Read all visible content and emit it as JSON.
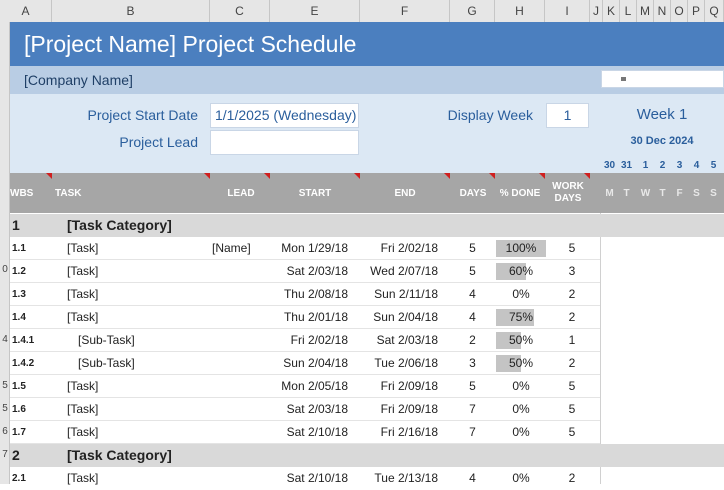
{
  "columns": [
    "A",
    "B",
    "C",
    "E",
    "F",
    "G",
    "H",
    "I",
    "J",
    "K",
    "L",
    "M",
    "N",
    "O",
    "P",
    "Q"
  ],
  "row_numbers": [
    "0",
    "5",
    "4",
    "5",
    "6",
    "7"
  ],
  "title": "[Project Name] Project Schedule",
  "company": "[Company Name]",
  "project_start_label": "Project Start Date",
  "project_start_value": "1/1/2025 (Wednesday)",
  "project_lead_label": "Project Lead",
  "project_lead_value": "",
  "display_week_label": "Display Week",
  "display_week_value": "1",
  "week_label": "Week 1",
  "week_date": "30 Dec 2024",
  "days": [
    "30",
    "31",
    "1",
    "2",
    "3",
    "4",
    "5"
  ],
  "days_of_week": [
    "M",
    "T",
    "W",
    "T",
    "F",
    "S",
    "S"
  ],
  "headers": {
    "wbs": "WBS",
    "task": "TASK",
    "lead": "LEAD",
    "start": "START",
    "end": "END",
    "days": "DAYS",
    "done": "% DONE",
    "work_days_1": "WORK",
    "work_days_2": "DAYS"
  },
  "rows": [
    {
      "type": "category",
      "wbs": "1",
      "task": "[Task Category]"
    },
    {
      "type": "task",
      "wbs": "1.1",
      "task": "[Task]",
      "lead": "[Name]",
      "start": "Mon 1/29/18",
      "end": "Fri 2/02/18",
      "days": "5",
      "done": "100%",
      "done_pct": 100,
      "work_days": "5"
    },
    {
      "type": "task",
      "wbs": "1.2",
      "task": "[Task]",
      "lead": "",
      "start": "Sat 2/03/18",
      "end": "Wed 2/07/18",
      "days": "5",
      "done": "60%",
      "done_pct": 60,
      "work_days": "3"
    },
    {
      "type": "task",
      "wbs": "1.3",
      "task": "[Task]",
      "lead": "",
      "start": "Thu 2/08/18",
      "end": "Sun 2/11/18",
      "days": "4",
      "done": "0%",
      "done_pct": 0,
      "work_days": "2"
    },
    {
      "type": "task",
      "wbs": "1.4",
      "task": "[Task]",
      "lead": "",
      "start": "Thu 2/01/18",
      "end": "Sun 2/04/18",
      "days": "4",
      "done": "75%",
      "done_pct": 75,
      "work_days": "2"
    },
    {
      "type": "subtask",
      "wbs": "1.4.1",
      "task": "[Sub-Task]",
      "lead": "",
      "start": "Fri 2/02/18",
      "end": "Sat 2/03/18",
      "days": "2",
      "done": "50%",
      "done_pct": 50,
      "work_days": "1"
    },
    {
      "type": "subtask",
      "wbs": "1.4.2",
      "task": "[Sub-Task]",
      "lead": "",
      "start": "Sun 2/04/18",
      "end": "Tue 2/06/18",
      "days": "3",
      "done": "50%",
      "done_pct": 50,
      "work_days": "2"
    },
    {
      "type": "task",
      "wbs": "1.5",
      "task": "[Task]",
      "lead": "",
      "start": "Mon 2/05/18",
      "end": "Fri 2/09/18",
      "days": "5",
      "done": "0%",
      "done_pct": 0,
      "work_days": "5"
    },
    {
      "type": "task",
      "wbs": "1.6",
      "task": "[Task]",
      "lead": "",
      "start": "Sat 2/03/18",
      "end": "Fri 2/09/18",
      "days": "7",
      "done": "0%",
      "done_pct": 0,
      "work_days": "5"
    },
    {
      "type": "task",
      "wbs": "1.7",
      "task": "[Task]",
      "lead": "",
      "start": "Sat 2/10/18",
      "end": "Fri 2/16/18",
      "days": "7",
      "done": "0%",
      "done_pct": 0,
      "work_days": "5"
    },
    {
      "type": "category",
      "wbs": "2",
      "task": "[Task Category]"
    },
    {
      "type": "task",
      "wbs": "2.1",
      "task": "[Task]",
      "lead": "",
      "start": "Sat 2/10/18",
      "end": "Tue 2/13/18",
      "days": "4",
      "done": "0%",
      "done_pct": 0,
      "work_days": "2"
    }
  ]
}
